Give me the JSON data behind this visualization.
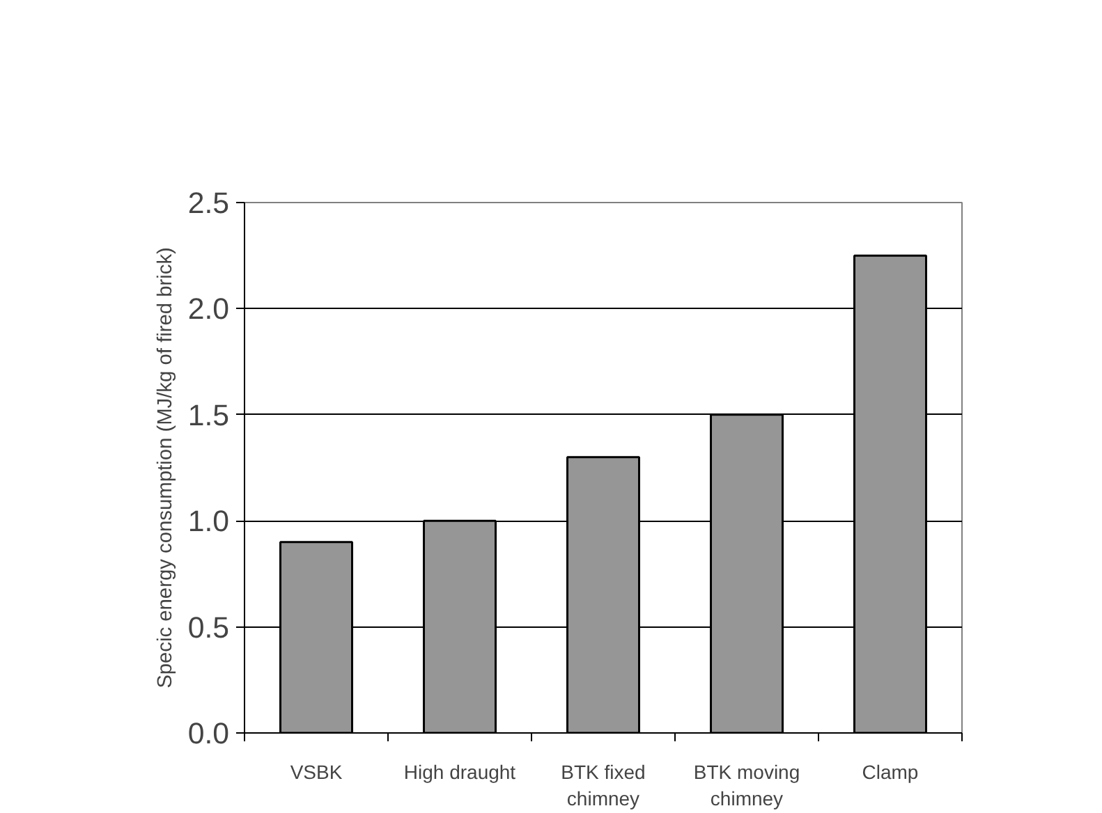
{
  "chart_data": {
    "type": "bar",
    "ylabel": "Specic energy consumption (MJ/kg of fired brick)",
    "categories": [
      "VSBK",
      "High draught",
      "BTK fixed chimney",
      "BTK moving chimney",
      "Clamp"
    ],
    "values": [
      0.9,
      1.0,
      1.3,
      1.5,
      2.25
    ],
    "color": "#969696",
    "ylim": [
      0,
      2.5
    ],
    "yticks": [
      {
        "value": 0,
        "label": "0.0"
      },
      {
        "value": 0.5,
        "label": "0.5"
      },
      {
        "value": 1,
        "label": "1.0"
      },
      {
        "value": 1.5,
        "label": "1.5"
      },
      {
        "value": 2,
        "label": "2.0"
      },
      {
        "value": 2.5,
        "label": "2.5"
      }
    ],
    "grid": "y"
  }
}
